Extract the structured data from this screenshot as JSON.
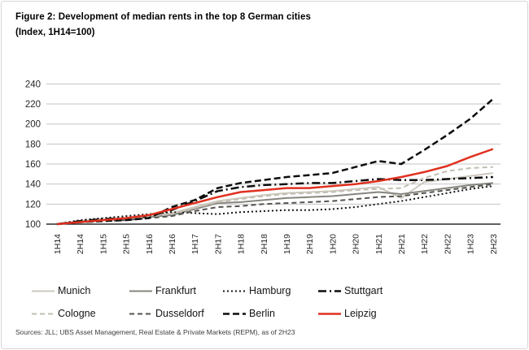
{
  "figure": {
    "title": "Figure 2: Development of median rents in the top 8 German cities",
    "subtitle": "(Index, 1H14=100)",
    "source": "Sources: JLL; UBS Asset Management, Real Estate & Private Markets (REPM), as of 2H23"
  },
  "chart_data": {
    "type": "line",
    "title": "Figure 2: Development of median rents in the top 8 German cities",
    "subtitle": "(Index, 1H14=100)",
    "xlabel": "",
    "ylabel": "",
    "ylim": [
      100,
      240
    ],
    "ytick_step": 20,
    "grid": true,
    "legend_position": "bottom",
    "categories": [
      "1H14",
      "2H14",
      "1H15",
      "2H15",
      "1H16",
      "2H16",
      "1H17",
      "2H17",
      "1H18",
      "2H18",
      "1H19",
      "2H19",
      "1H20",
      "2H20",
      "1H21",
      "2H21",
      "1H22",
      "2H22",
      "1H23",
      "2H23"
    ],
    "series": [
      {
        "name": "Munich",
        "color": "#ccc8bd",
        "dash": "",
        "width": 2,
        "values": [
          100,
          103,
          105,
          106,
          108,
          111,
          117,
          123,
          126,
          129,
          131,
          132,
          133,
          135,
          137,
          126,
          142,
          145,
          148,
          151
        ]
      },
      {
        "name": "Frankfurt",
        "color": "#87857e",
        "dash": "",
        "width": 2,
        "values": [
          100,
          102,
          104,
          105,
          107,
          109,
          115,
          121,
          122,
          124,
          126,
          127,
          128,
          130,
          132,
          130,
          133,
          136,
          139,
          141
        ]
      },
      {
        "name": "Hamburg",
        "color": "#151515",
        "dash": "2 3",
        "width": 2,
        "values": [
          100,
          104,
          106,
          108,
          110,
          112,
          111,
          110,
          112,
          113,
          114,
          114,
          115,
          117,
          120,
          123,
          127,
          131,
          135,
          138
        ]
      },
      {
        "name": "Stuttgart",
        "color": "#0d0d0d",
        "dash": "10 4 2 4",
        "width": 2.5,
        "values": [
          100,
          103,
          105,
          106,
          108,
          114,
          123,
          133,
          137,
          139,
          140,
          141,
          141,
          143,
          145,
          144,
          144,
          145,
          146,
          147
        ]
      },
      {
        "name": "Cologne",
        "color": "#c2beb3",
        "dash": "6 4",
        "width": 2,
        "values": [
          100,
          102,
          104,
          105,
          107,
          110,
          116,
          122,
          125,
          128,
          130,
          131,
          132,
          134,
          135,
          136,
          146,
          153,
          156,
          157
        ]
      },
      {
        "name": "Dusseldorf",
        "color": "#55534e",
        "dash": "6 4",
        "width": 2,
        "values": [
          100,
          102,
          103,
          104,
          106,
          108,
          113,
          117,
          118,
          120,
          121,
          122,
          123,
          125,
          127,
          128,
          131,
          134,
          137,
          140
        ]
      },
      {
        "name": "Berlin",
        "color": "#0d0d0d",
        "dash": "8 4",
        "width": 2.5,
        "values": [
          100,
          102,
          103,
          104,
          106,
          117,
          124,
          136,
          141,
          144,
          147,
          149,
          151,
          157,
          163,
          160,
          174,
          189,
          205,
          225
        ]
      },
      {
        "name": "Leipzig",
        "color": "#e0301e",
        "dash": "",
        "width": 2.5,
        "values": [
          100,
          102,
          104,
          106,
          109,
          115,
          121,
          127,
          132,
          134,
          136,
          136,
          138,
          140,
          143,
          147,
          152,
          158,
          167,
          175
        ]
      }
    ]
  }
}
